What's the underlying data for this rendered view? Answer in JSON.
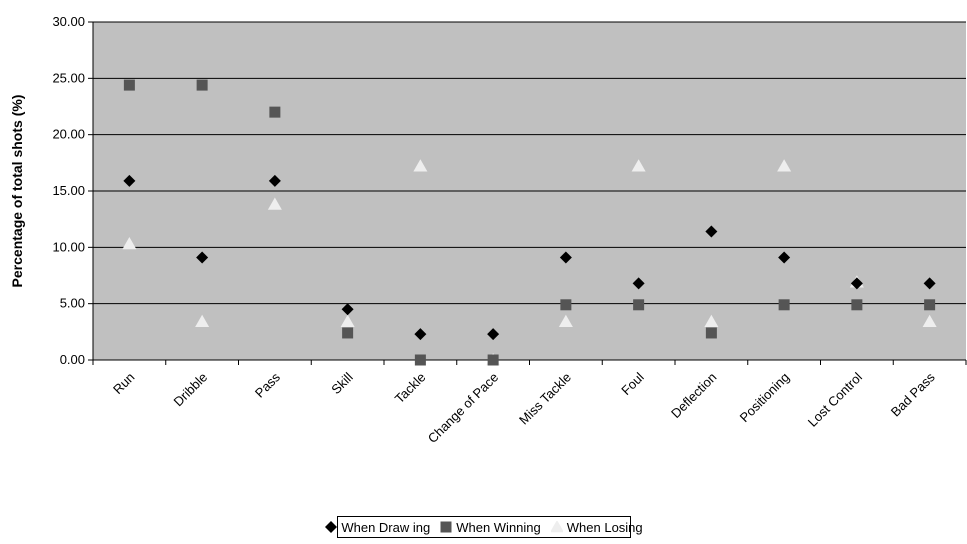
{
  "chart_data": {
    "type": "scatter",
    "title": "",
    "xlabel": "",
    "ylabel": "Percentage of total shots (%)",
    "ylim": [
      0,
      30
    ],
    "yticks": [
      "0.00",
      "5.00",
      "10.00",
      "15.00",
      "20.00",
      "25.00",
      "30.00"
    ],
    "grid": true,
    "legend_position": "bottom",
    "categories": [
      "Run",
      "Dribble",
      "Pass",
      "Skill",
      "Tackle",
      "Change of Pace",
      "Miss Tackle",
      "Foul",
      "Deflection",
      "Positioning",
      "Lost Control",
      "Bad Pass"
    ],
    "series": [
      {
        "name": "When Draw ing",
        "marker": "diamond",
        "color": "#000000",
        "values": [
          15.9,
          9.1,
          15.9,
          4.5,
          2.3,
          2.3,
          9.1,
          6.8,
          11.4,
          9.1,
          6.8,
          6.8
        ]
      },
      {
        "name": "When Winning",
        "marker": "square",
        "color": "#555555",
        "values": [
          24.4,
          24.4,
          22.0,
          2.4,
          0.0,
          0.0,
          4.9,
          4.9,
          2.4,
          4.9,
          4.9,
          4.9
        ]
      },
      {
        "name": "When Losing",
        "marker": "triangle",
        "color": "#eeeeee",
        "values": [
          10.3,
          3.4,
          13.8,
          3.4,
          17.2,
          0.0,
          3.4,
          17.2,
          3.4,
          17.2,
          6.9,
          3.4
        ]
      }
    ],
    "plot_background": "#c0c0c0"
  }
}
